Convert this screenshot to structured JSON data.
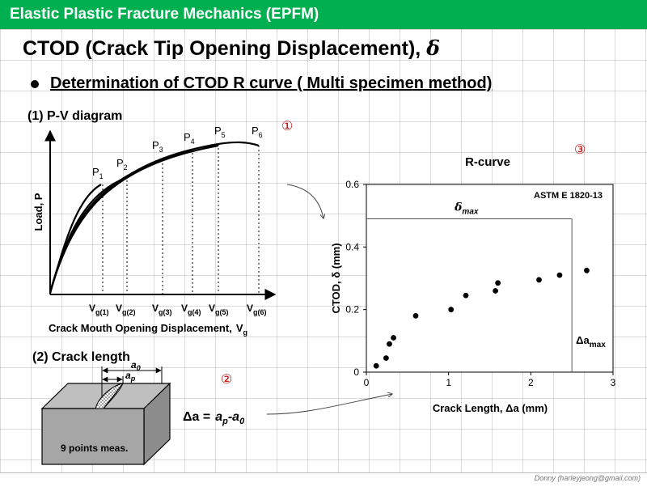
{
  "header": {
    "title": "Elastic Plastic Fracture Mechanics (EPFM)"
  },
  "slide_title": "CTOD (Crack Tip Opening Displacement),",
  "slide_title_symbol": "δ",
  "bullet": "Determination of CTOD R curve ( Multi specimen method)",
  "pv": {
    "heading": "(1) P-V diagram",
    "marker": "①",
    "ylabel": "Load, P",
    "xlabel": "Crack Mouth Opening Displacement,",
    "xlabel_var": "V",
    "xlabel_sub": "g",
    "p_labels": [
      {
        "base": "P",
        "sub": "1"
      },
      {
        "base": "P",
        "sub": "2"
      },
      {
        "base": "P",
        "sub": "3"
      },
      {
        "base": "P",
        "sub": "4"
      },
      {
        "base": "P",
        "sub": "5"
      },
      {
        "base": "P",
        "sub": "6"
      }
    ],
    "v_labels": [
      {
        "base": "V",
        "sub": "g(1)"
      },
      {
        "base": "V",
        "sub": "g(2)"
      },
      {
        "base": "V",
        "sub": "g(3)"
      },
      {
        "base": "V",
        "sub": "g(4)"
      },
      {
        "base": "V",
        "sub": "g(5)"
      },
      {
        "base": "V",
        "sub": "g(6)"
      }
    ]
  },
  "crack": {
    "heading": "(2) Crack length",
    "marker": "②",
    "a0": "a",
    "a0_sub": "0",
    "ap": "a",
    "ap_sub": "p",
    "note": "9 points meas.",
    "eq_lhs": "Δa =",
    "eq_ap": "a",
    "eq_ap_sub": "p",
    "eq_a0": "-a",
    "eq_a0_sub": "0"
  },
  "chart_data": {
    "type": "scatter",
    "title": "R-curve",
    "marker": "③",
    "annotation": "ASTM E 1820-13",
    "xlabel": "Crack Length,  Δa (mm)",
    "ylabel": "CTOD,  δ (mm)",
    "xlim": [
      0,
      3
    ],
    "ylim": [
      0,
      0.6
    ],
    "xticks": [
      "0",
      "1",
      "2",
      "3"
    ],
    "yticks": [
      "0",
      "0.2",
      "0.4",
      "0.6"
    ],
    "delta_max_label": "δ",
    "delta_max_sub": "max",
    "delta_max": 0.49,
    "da_max_label": "Δa",
    "da_max_sub": "max",
    "da_max": 2.5,
    "points": [
      {
        "x": 0.12,
        "y": 0.02
      },
      {
        "x": 0.24,
        "y": 0.045
      },
      {
        "x": 0.28,
        "y": 0.09
      },
      {
        "x": 0.33,
        "y": 0.11
      },
      {
        "x": 0.6,
        "y": 0.18
      },
      {
        "x": 1.03,
        "y": 0.2
      },
      {
        "x": 1.21,
        "y": 0.245
      },
      {
        "x": 1.57,
        "y": 0.26
      },
      {
        "x": 1.6,
        "y": 0.285
      },
      {
        "x": 2.1,
        "y": 0.295
      },
      {
        "x": 2.35,
        "y": 0.31
      },
      {
        "x": 2.68,
        "y": 0.325
      }
    ]
  },
  "footer": "Donny (harleyjeong@gmail.com)",
  "colors": {
    "header_bg": "#00b050",
    "marker": "#c00000"
  }
}
